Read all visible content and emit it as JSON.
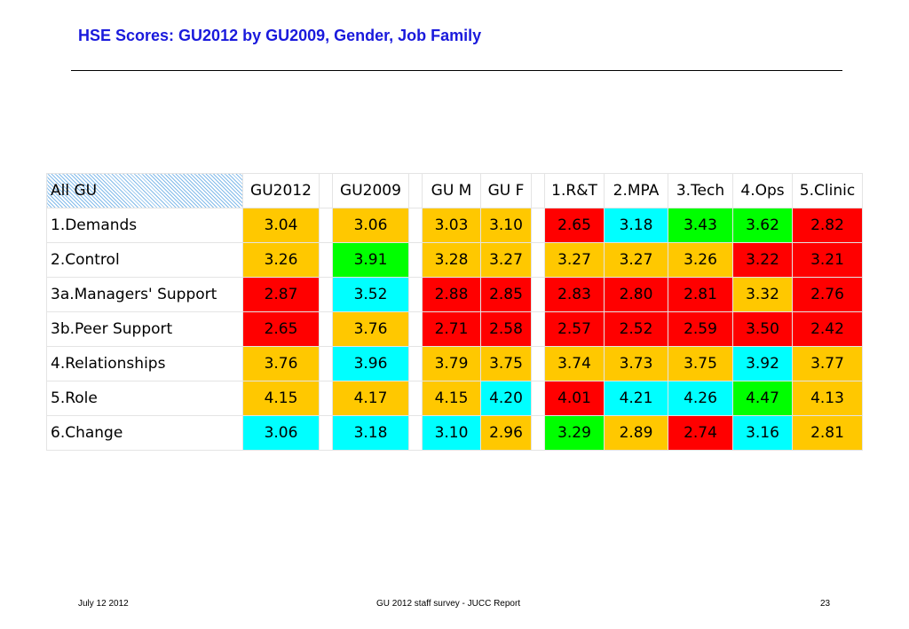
{
  "title": "HSE Scores: GU2012 by GU2009, Gender, Job Family",
  "colors": {
    "yellow": "#ffc800",
    "red": "#ff0000",
    "green": "#00ff00",
    "cyan": "#00ffff"
  },
  "table": {
    "corner_label": "All GU",
    "columns": [
      "GU2012",
      "GU2009",
      "GU M",
      "GU F",
      "1.R&T",
      "2.MPA",
      "3.Tech",
      "4.Ops",
      "5.Clinic"
    ],
    "rows": [
      {
        "label": "1.Demands",
        "values": [
          "3.04",
          "3.06",
          "3.03",
          "3.10",
          "2.65",
          "3.18",
          "3.43",
          "3.62",
          "2.82"
        ],
        "colors": [
          "yellow",
          "yellow",
          "yellow",
          "yellow",
          "red",
          "cyan",
          "green",
          "green",
          "red"
        ]
      },
      {
        "label": "2.Control",
        "values": [
          "3.26",
          "3.91",
          "3.28",
          "3.27",
          "3.27",
          "3.27",
          "3.26",
          "3.22",
          "3.21"
        ],
        "colors": [
          "yellow",
          "green",
          "yellow",
          "yellow",
          "yellow",
          "yellow",
          "yellow",
          "red",
          "red"
        ]
      },
      {
        "label": "3a.Managers' Support",
        "values": [
          "2.87",
          "3.52",
          "2.88",
          "2.85",
          "2.83",
          "2.80",
          "2.81",
          "3.32",
          "2.76"
        ],
        "colors": [
          "red",
          "cyan",
          "red",
          "red",
          "red",
          "red",
          "red",
          "yellow",
          "red"
        ]
      },
      {
        "label": "3b.Peer Support",
        "values": [
          "2.65",
          "3.76",
          "2.71",
          "2.58",
          "2.57",
          "2.52",
          "2.59",
          "3.50",
          "2.42"
        ],
        "colors": [
          "red",
          "yellow",
          "red",
          "red",
          "red",
          "red",
          "red",
          "red",
          "red"
        ]
      },
      {
        "label": "4.Relationships",
        "values": [
          "3.76",
          "3.96",
          "3.79",
          "3.75",
          "3.74",
          "3.73",
          "3.75",
          "3.92",
          "3.77"
        ],
        "colors": [
          "yellow",
          "cyan",
          "yellow",
          "yellow",
          "yellow",
          "yellow",
          "yellow",
          "cyan",
          "yellow"
        ]
      },
      {
        "label": "5.Role",
        "values": [
          "4.15",
          "4.17",
          "4.15",
          "4.20",
          "4.01",
          "4.21",
          "4.26",
          "4.47",
          "4.13"
        ],
        "colors": [
          "yellow",
          "yellow",
          "yellow",
          "cyan",
          "red",
          "cyan",
          "cyan",
          "green",
          "yellow"
        ]
      },
      {
        "label": "6.Change",
        "values": [
          "3.06",
          "3.18",
          "3.10",
          "2.96",
          "3.29",
          "2.89",
          "2.74",
          "3.16",
          "2.81"
        ],
        "colors": [
          "cyan",
          "cyan",
          "cyan",
          "yellow",
          "green",
          "yellow",
          "red",
          "cyan",
          "yellow"
        ]
      }
    ]
  },
  "footer": {
    "date": "July 12 2012",
    "center": "GU 2012 staff survey -  JUCC Report",
    "page": "23"
  }
}
